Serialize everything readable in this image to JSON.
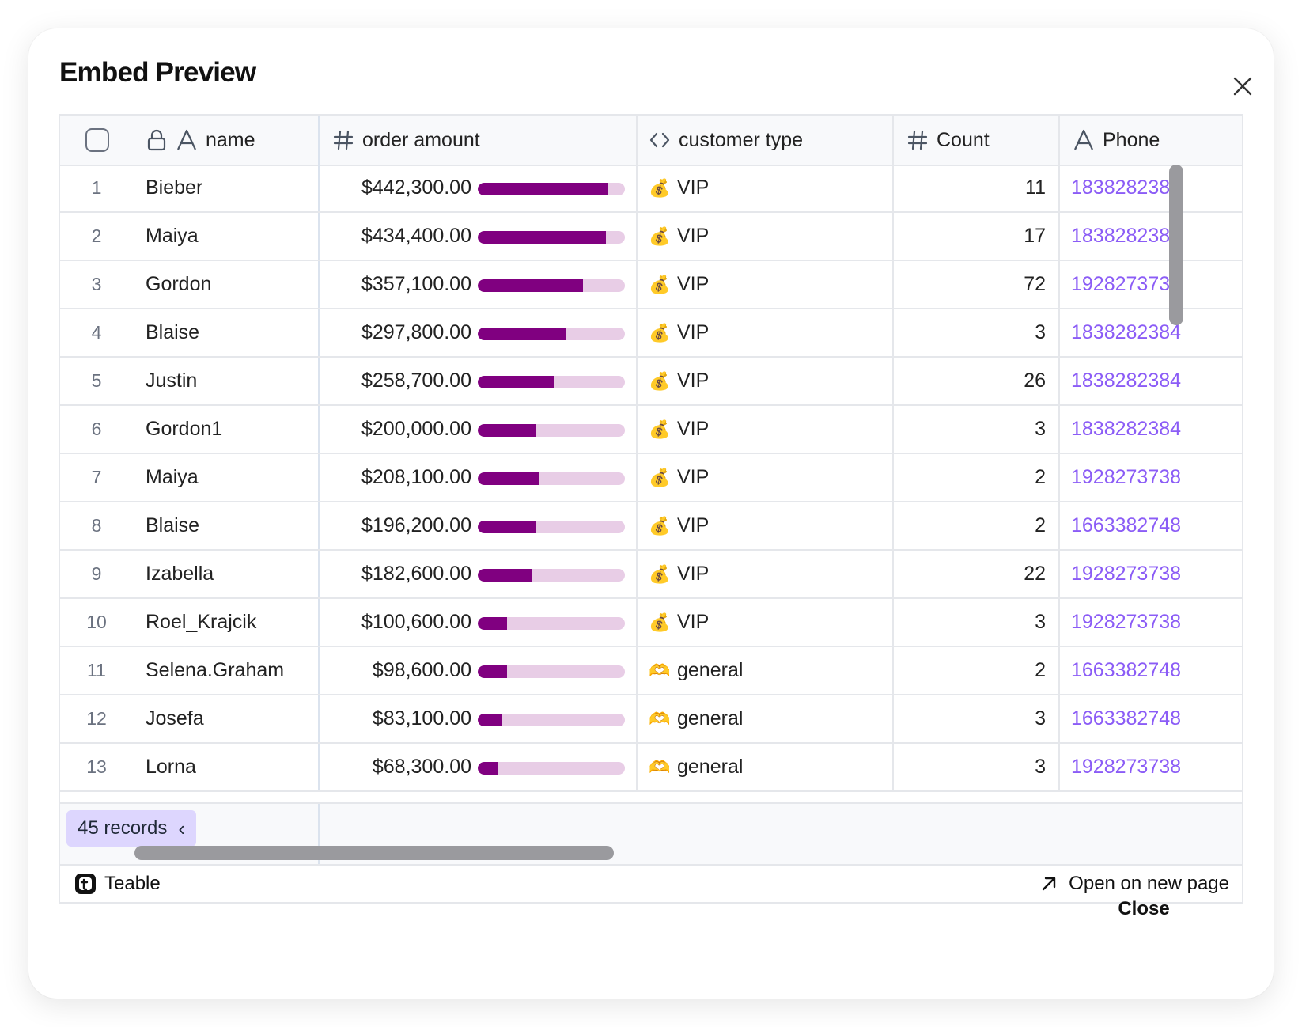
{
  "dialog": {
    "title": "Embed Preview",
    "close_button": "Close"
  },
  "table": {
    "columns": [
      {
        "label": "name",
        "icon": "text-icon"
      },
      {
        "label": "order amount",
        "icon": "number-icon"
      },
      {
        "label": "customer type",
        "icon": "code-icon"
      },
      {
        "label": "Count",
        "icon": "number-icon"
      },
      {
        "label": "Phone",
        "icon": "text-icon"
      }
    ],
    "rows": [
      {
        "n": "1",
        "name": "Bieber",
        "amount": "$442,300.00",
        "ratio": 0.885,
        "type_emoji": "💰",
        "type": "VIP",
        "count": "11",
        "phone": "1838282384"
      },
      {
        "n": "2",
        "name": "Maiya",
        "amount": "$434,400.00",
        "ratio": 0.87,
        "type_emoji": "💰",
        "type": "VIP",
        "count": "17",
        "phone": "1838282384"
      },
      {
        "n": "3",
        "name": "Gordon",
        "amount": "$357,100.00",
        "ratio": 0.714,
        "type_emoji": "💰",
        "type": "VIP",
        "count": "72",
        "phone": "1928273738"
      },
      {
        "n": "4",
        "name": "Blaise",
        "amount": "$297,800.00",
        "ratio": 0.596,
        "type_emoji": "💰",
        "type": "VIP",
        "count": "3",
        "phone": "1838282384"
      },
      {
        "n": "5",
        "name": "Justin",
        "amount": "$258,700.00",
        "ratio": 0.517,
        "type_emoji": "💰",
        "type": "VIP",
        "count": "26",
        "phone": "1838282384"
      },
      {
        "n": "6",
        "name": "Gordon1",
        "amount": "$200,000.00",
        "ratio": 0.4,
        "type_emoji": "💰",
        "type": "VIP",
        "count": "3",
        "phone": "1838282384"
      },
      {
        "n": "7",
        "name": "Maiya",
        "amount": "$208,100.00",
        "ratio": 0.416,
        "type_emoji": "💰",
        "type": "VIP",
        "count": "2",
        "phone": "1928273738"
      },
      {
        "n": "8",
        "name": "Blaise",
        "amount": "$196,200.00",
        "ratio": 0.392,
        "type_emoji": "💰",
        "type": "VIP",
        "count": "2",
        "phone": "1663382748"
      },
      {
        "n": "9",
        "name": "Izabella",
        "amount": "$182,600.00",
        "ratio": 0.365,
        "type_emoji": "💰",
        "type": "VIP",
        "count": "22",
        "phone": "1928273738"
      },
      {
        "n": "10",
        "name": "Roel_Krajcik",
        "amount": "$100,600.00",
        "ratio": 0.2,
        "type_emoji": "💰",
        "type": "VIP",
        "count": "3",
        "phone": "1928273738"
      },
      {
        "n": "11",
        "name": "Selena.Graham",
        "amount": "$98,600.00",
        "ratio": 0.197,
        "type_emoji": "🫶",
        "type": "general",
        "count": "2",
        "phone": "1663382748"
      },
      {
        "n": "12",
        "name": "Josefa",
        "amount": "$83,100.00",
        "ratio": 0.166,
        "type_emoji": "🫶",
        "type": "general",
        "count": "3",
        "phone": "1663382748"
      },
      {
        "n": "13",
        "name": "Lorna",
        "amount": "$68,300.00",
        "ratio": 0.137,
        "type_emoji": "🫶",
        "type": "general",
        "count": "3",
        "phone": "1928273738"
      }
    ],
    "records_label": "45 records",
    "records_chevron": "‹"
  },
  "footer": {
    "brand": "Teable",
    "open_link": "Open on new page"
  },
  "colors": {
    "bar_fill": "#800080",
    "bar_track": "#e8cde6",
    "phone_link": "#8b5cf6",
    "records_badge": "#ddd6fe"
  }
}
